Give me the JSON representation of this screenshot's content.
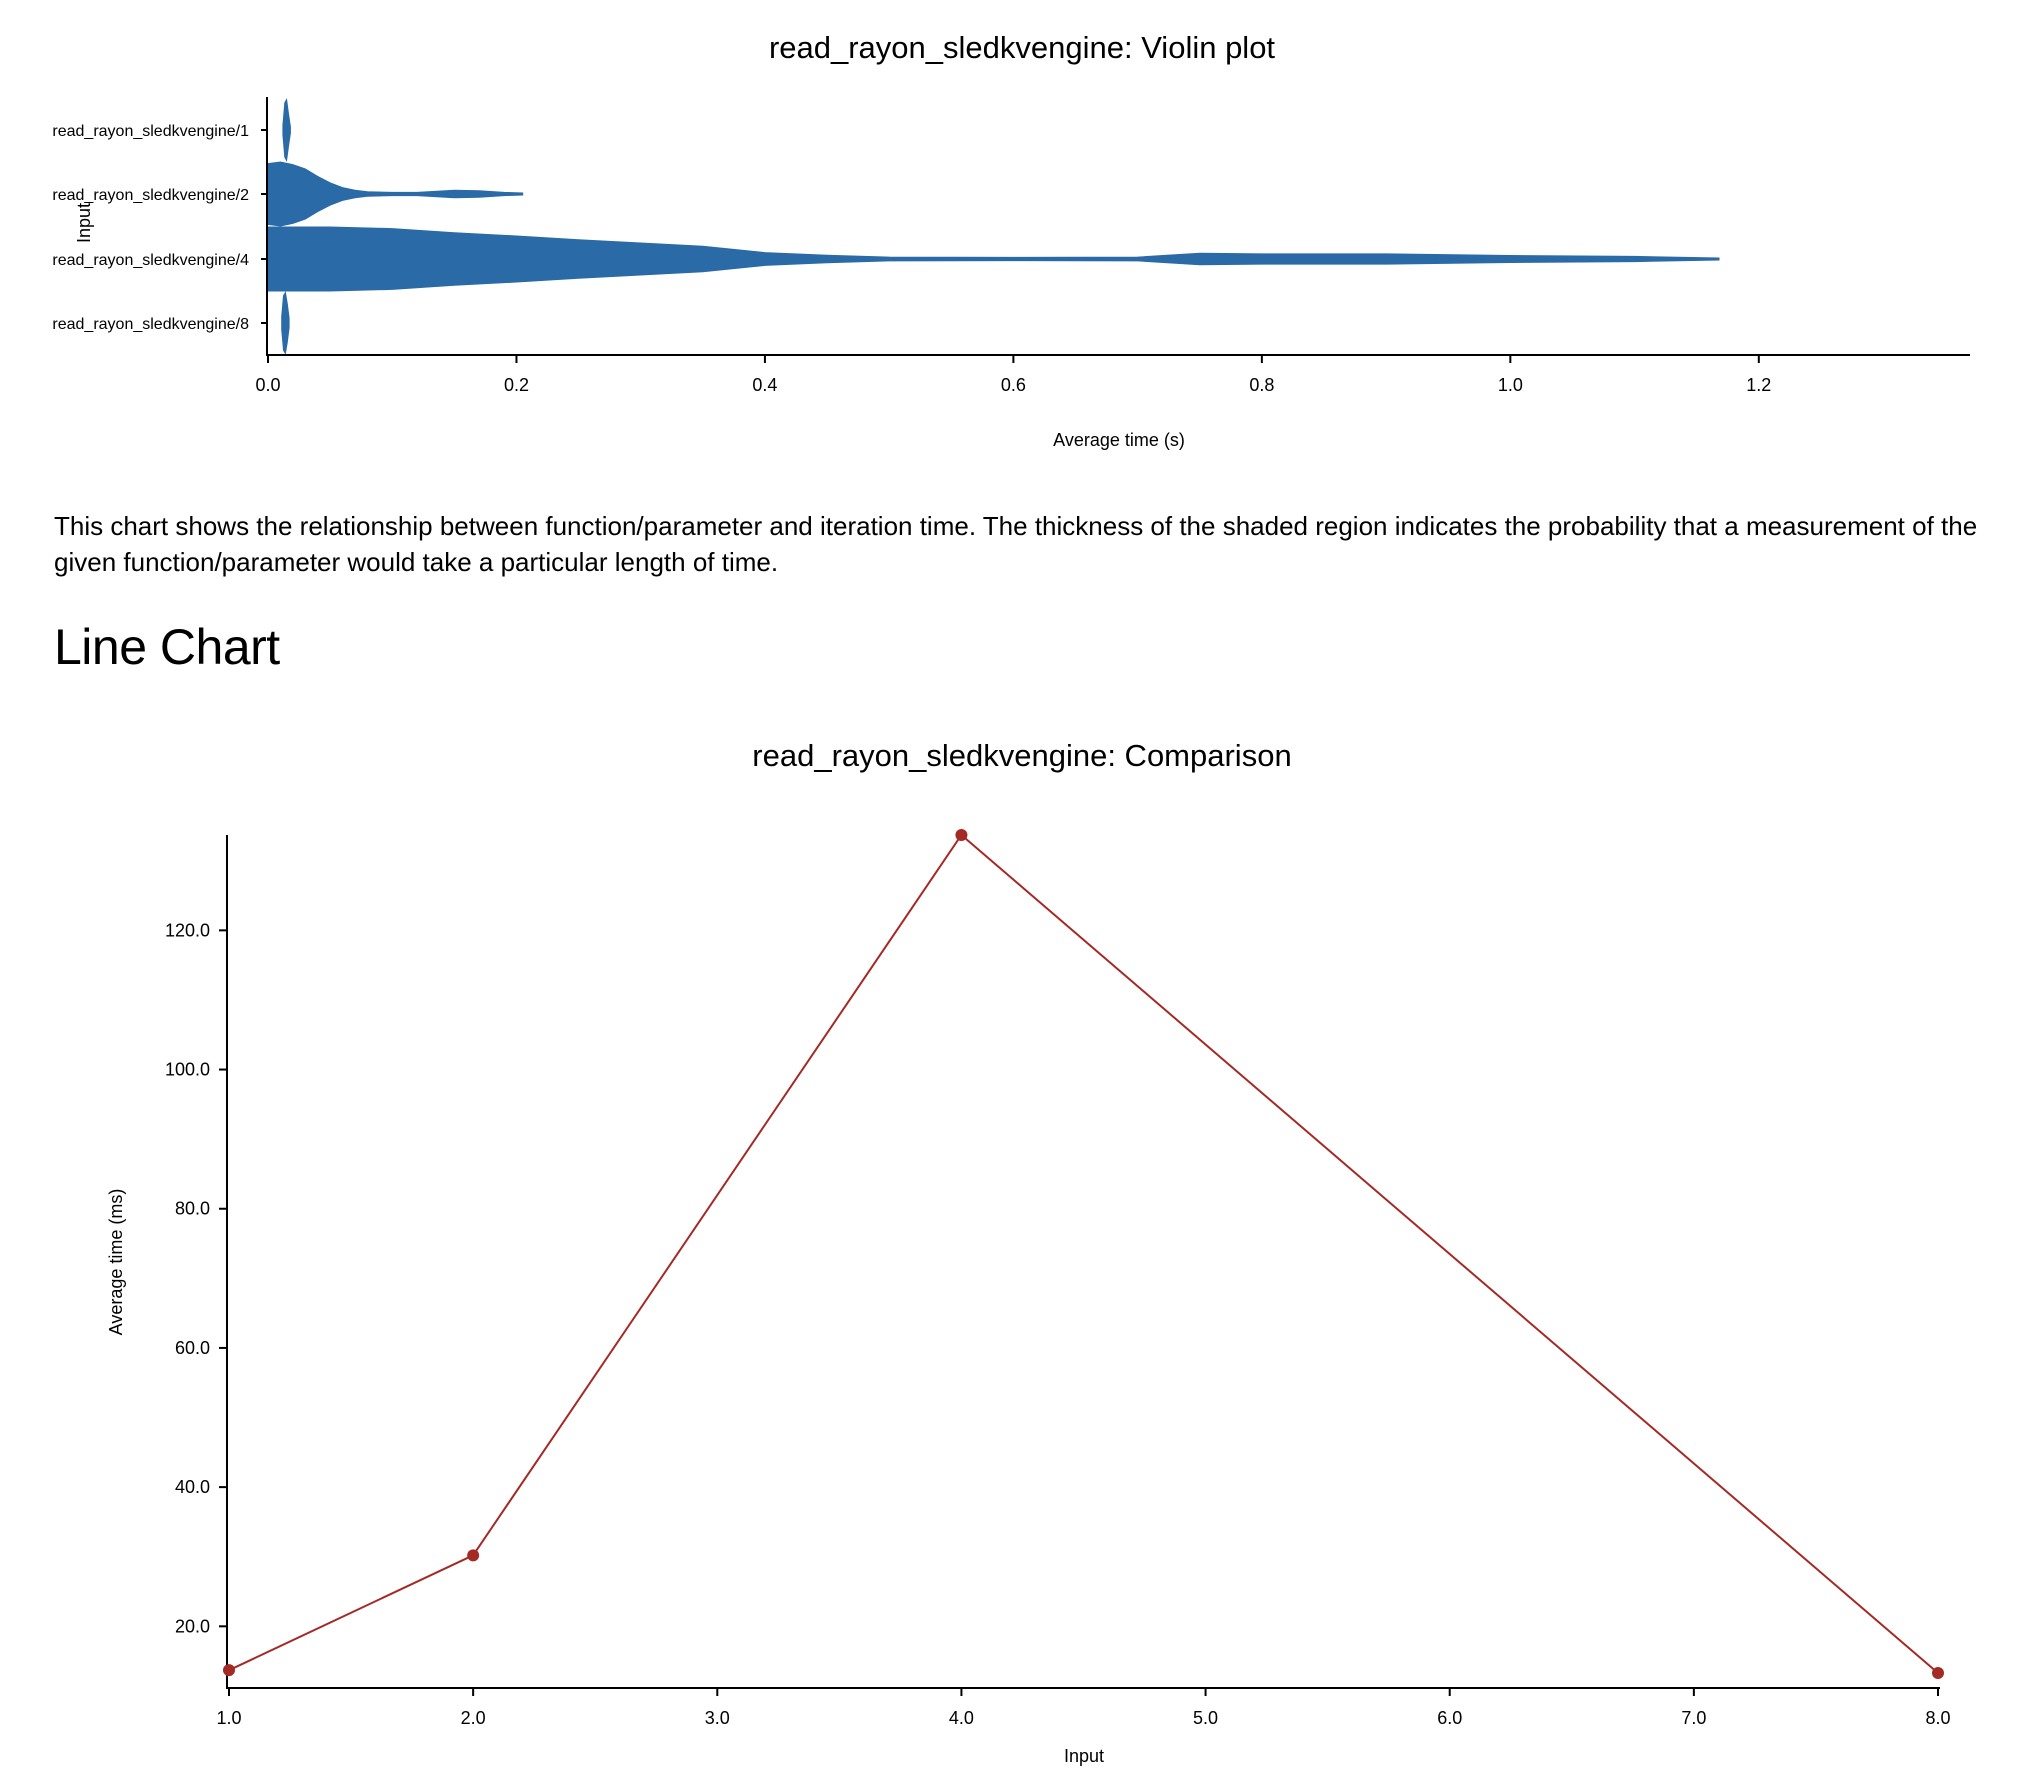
{
  "violin": {
    "title": "read_rayon_sledkvengine: Violin plot",
    "xlabel": "Average time (s)",
    "ylabel": "Input",
    "color": "#2a6aa6",
    "chart_data": {
      "type": "violin",
      "title": "read_rayon_sledkvengine: Violin plot",
      "xlabel": "Average time (s)",
      "ylabel": "Input",
      "xlim": [
        0.0,
        1.37
      ],
      "xticks": [
        "0.0",
        "0.2",
        "0.4",
        "0.6",
        "0.8",
        "1.0",
        "1.2"
      ],
      "categories": [
        "read_rayon_sledkvengine/1",
        "read_rayon_sledkvengine/2",
        "read_rayon_sledkvengine/4",
        "read_rayon_sledkvengine/8"
      ],
      "series": [
        {
          "category": "read_rayon_sledkvengine/1",
          "min": 0.012,
          "max": 0.018,
          "mean": 0.0137,
          "density": [
            [
              0.012,
              0.15
            ],
            [
              0.0135,
              0.85
            ],
            [
              0.015,
              0.95
            ],
            [
              0.0165,
              0.5
            ],
            [
              0.018,
              0.1
            ]
          ]
        },
        {
          "category": "read_rayon_sledkvengine/2",
          "min": 0.0,
          "max": 0.205,
          "mean": 0.0302,
          "density": [
            [
              0.0,
              0.95
            ],
            [
              0.01,
              1.0
            ],
            [
              0.02,
              0.92
            ],
            [
              0.03,
              0.78
            ],
            [
              0.04,
              0.55
            ],
            [
              0.05,
              0.35
            ],
            [
              0.06,
              0.2
            ],
            [
              0.07,
              0.12
            ],
            [
              0.08,
              0.07
            ],
            [
              0.1,
              0.05
            ],
            [
              0.12,
              0.05
            ],
            [
              0.15,
              0.12
            ],
            [
              0.17,
              0.1
            ],
            [
              0.19,
              0.05
            ],
            [
              0.205,
              0.03
            ]
          ]
        },
        {
          "category": "read_rayon_sledkvengine/4",
          "min": 0.0,
          "max": 1.168,
          "mean": 0.1337,
          "density": [
            [
              0.0,
              1.0
            ],
            [
              0.05,
              1.0
            ],
            [
              0.1,
              0.95
            ],
            [
              0.15,
              0.82
            ],
            [
              0.2,
              0.72
            ],
            [
              0.25,
              0.6
            ],
            [
              0.3,
              0.5
            ],
            [
              0.35,
              0.4
            ],
            [
              0.4,
              0.2
            ],
            [
              0.45,
              0.12
            ],
            [
              0.5,
              0.06
            ],
            [
              0.6,
              0.05
            ],
            [
              0.7,
              0.06
            ],
            [
              0.75,
              0.18
            ],
            [
              0.8,
              0.16
            ],
            [
              0.9,
              0.16
            ],
            [
              1.0,
              0.11
            ],
            [
              1.1,
              0.08
            ],
            [
              1.168,
              0.03
            ]
          ]
        },
        {
          "category": "read_rayon_sledkvengine/8",
          "min": 0.011,
          "max": 0.017,
          "mean": 0.0133,
          "density": [
            [
              0.011,
              0.2
            ],
            [
              0.0125,
              0.85
            ],
            [
              0.014,
              0.95
            ],
            [
              0.0155,
              0.6
            ],
            [
              0.017,
              0.15
            ]
          ]
        }
      ]
    }
  },
  "description": "This chart shows the relationship between function/parameter and iteration time. The thickness of the shaded region indicates the probability that a measurement of the given function/parameter would take a particular length of time.",
  "section_heading": "Line Chart",
  "line": {
    "title": "read_rayon_sledkvengine: Comparison",
    "xlabel": "Input",
    "ylabel": "Average time (ms)",
    "color": "#a32a25",
    "chart_data": {
      "type": "line",
      "title": "read_rayon_sledkvengine: Comparison",
      "xlabel": "Input",
      "ylabel": "Average time (ms)",
      "xlim": [
        1.0,
        8.0
      ],
      "ylim": [
        12.0,
        133.7
      ],
      "xticks": [
        "1.0",
        "2.0",
        "3.0",
        "4.0",
        "5.0",
        "6.0",
        "7.0",
        "8.0"
      ],
      "yticks": [
        "20.0",
        "40.0",
        "60.0",
        "80.0",
        "100.0",
        "120.0"
      ],
      "x": [
        1,
        2,
        4,
        8
      ],
      "y": [
        13.7,
        30.2,
        133.7,
        13.3
      ]
    }
  }
}
